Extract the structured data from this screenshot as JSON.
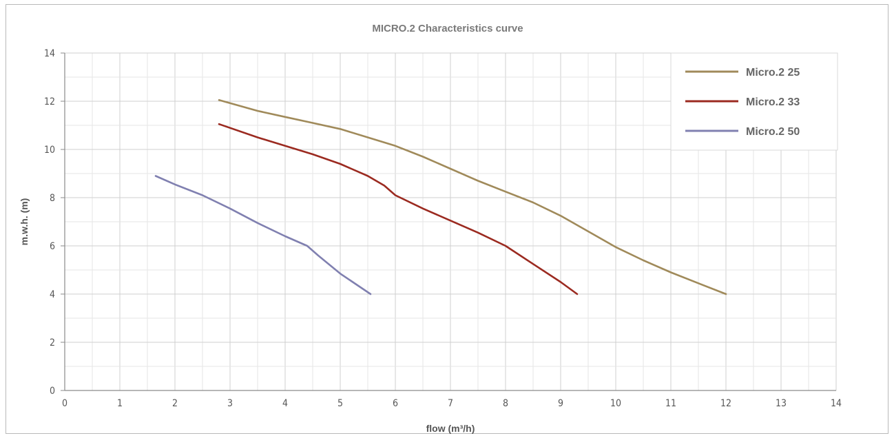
{
  "chart_data": {
    "type": "line",
    "title": "MICRO.2 Characteristics curve",
    "xlabel": "flow (m³/h)",
    "ylabel": "m.w.h. (m)",
    "xlim": [
      0,
      14
    ],
    "ylim": [
      0,
      14
    ],
    "x_ticks": [
      "0",
      "1",
      "2",
      "3",
      "4",
      "5",
      "6",
      "7",
      "8",
      "9",
      "10",
      "11",
      "12",
      "13",
      "14"
    ],
    "y_ticks": [
      "0",
      "2",
      "4",
      "6",
      "8",
      "10",
      "12",
      "14"
    ],
    "grid": true,
    "legend_position": "top-right",
    "series": [
      {
        "name": "Micro.2 25",
        "color": "#a08a5a",
        "x": [
          2.8,
          3.5,
          4.0,
          4.5,
          5.0,
          5.5,
          6.0,
          6.5,
          7.0,
          7.5,
          8.0,
          8.5,
          9.0,
          9.5,
          10.0,
          10.5,
          11.0,
          11.5,
          12.0
        ],
        "y": [
          12.05,
          11.6,
          11.35,
          11.1,
          10.85,
          10.5,
          10.15,
          9.7,
          9.2,
          8.7,
          8.25,
          7.8,
          7.25,
          6.6,
          5.95,
          5.4,
          4.9,
          4.45,
          4.0
        ]
      },
      {
        "name": "Micro.2 33",
        "color": "#9b2a20",
        "x": [
          2.8,
          3.5,
          4.0,
          4.5,
          5.0,
          5.5,
          5.8,
          6.0,
          6.5,
          7.0,
          7.5,
          8.0,
          8.5,
          9.0,
          9.3
        ],
        "y": [
          11.05,
          10.5,
          10.15,
          9.8,
          9.4,
          8.9,
          8.5,
          8.1,
          7.55,
          7.05,
          6.55,
          6.0,
          5.25,
          4.5,
          4.0
        ]
      },
      {
        "name": "Micro.2 50",
        "color": "#8080b0",
        "x": [
          1.65,
          2.0,
          2.5,
          3.0,
          3.5,
          4.0,
          4.4,
          4.6,
          5.0,
          5.55
        ],
        "y": [
          8.9,
          8.55,
          8.1,
          7.55,
          6.95,
          6.4,
          6.0,
          5.6,
          4.85,
          4.0
        ]
      }
    ]
  }
}
